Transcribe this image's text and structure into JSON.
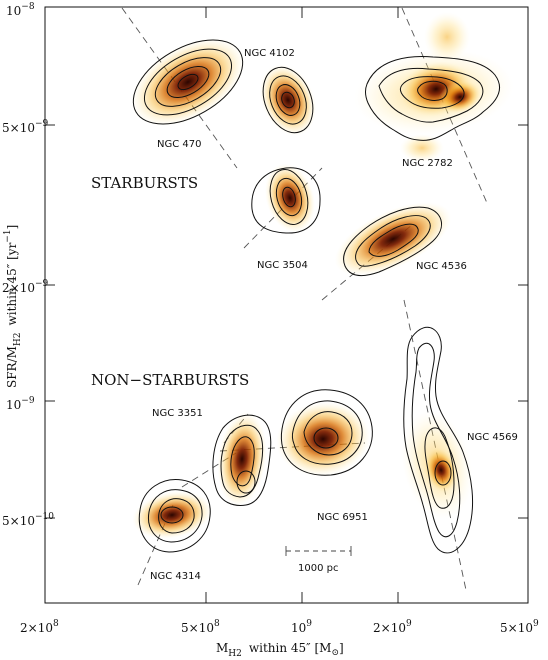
{
  "chart_data": {
    "type": "scatter",
    "title": "",
    "xlabel": "M",
    "xlabel_sub": "H2",
    "xlabel_tail": "within 45″  [M",
    "xlabel_sun": "⊙",
    "xlabel_close": "]",
    "ylabel": "SFR/M",
    "ylabel_sub": "H2",
    "ylabel_mid": "within 45″  [yr",
    "ylabel_exp": "−1",
    "ylabel_close": "]",
    "x_scale": "log",
    "y_scale": "log",
    "xlim": [
      200000000,
      5000000000
    ],
    "ylim": [
      2.5e-10,
      1.05e-08
    ],
    "x_ticks": [
      {
        "value": 200000000,
        "mant": "2×10",
        "exp": "8"
      },
      {
        "value": 500000000,
        "mant": "5×10",
        "exp": "8"
      },
      {
        "value": 1000000000,
        "mant": "10",
        "exp": "9"
      },
      {
        "value": 2000000000,
        "mant": "2×10",
        "exp": "9"
      },
      {
        "value": 5000000000,
        "mant": "5×10",
        "exp": "9"
      }
    ],
    "y_ticks": [
      {
        "value": 1e-08,
        "mant": "10",
        "exp": "−8"
      },
      {
        "value": 5e-09,
        "mant": "5×10",
        "exp": "−9"
      },
      {
        "value": 2e-09,
        "mant": "2×10",
        "exp": "−9"
      },
      {
        "value": 1e-09,
        "mant": "10",
        "exp": "−9"
      },
      {
        "value": 5e-10,
        "mant": "5×10",
        "exp": "−10"
      }
    ],
    "groups": [
      {
        "label": "STARBURSTS",
        "x": 310000000,
        "y": 3.4e-09
      },
      {
        "label": "NON−STARBURSTS",
        "x": 310000000,
        "y": 1.25e-09
      }
    ],
    "galaxies": [
      {
        "name": "NGC 470",
        "mass": 420000000,
        "sfr_per_mass": 6.4e-09,
        "category": "starburst"
      },
      {
        "name": "NGC 4102",
        "mass": 930000000,
        "sfr_per_mass": 5.8e-09,
        "category": "starburst"
      },
      {
        "name": "NGC 2782",
        "mass": 2650000000,
        "sfr_per_mass": 6.2e-09,
        "category": "starburst"
      },
      {
        "name": "NGC 3504",
        "mass": 970000000,
        "sfr_per_mass": 3.2e-09,
        "category": "starburst"
      },
      {
        "name": "NGC 4536",
        "mass": 1900000000,
        "sfr_per_mass": 2.7e-09,
        "category": "starburst"
      },
      {
        "name": "NGC 3351",
        "mass": 700000000,
        "sfr_per_mass": 7.3e-10,
        "category": "non-starburst"
      },
      {
        "name": "NGC 6951",
        "mass": 1150000000,
        "sfr_per_mass": 7.8e-10,
        "category": "non-starburst"
      },
      {
        "name": "NGC 4569",
        "mass": 2800000000,
        "sfr_per_mass": 6.6e-10,
        "category": "non-starburst"
      },
      {
        "name": "NGC 4314",
        "mass": 385000000,
        "sfr_per_mass": 5.1e-10,
        "category": "non-starburst"
      }
    ],
    "scale_bar": {
      "label": "1000 pc"
    },
    "legend": "none",
    "grid": false,
    "colors": {
      "frame": "#111111",
      "contour": "#111111",
      "emission_peak": "#3a0d00",
      "emission_mid": "#c24a00",
      "emission_warm": "#f29a1c",
      "emission_faint": "#ffe28a",
      "dash_line": "#555555"
    }
  }
}
